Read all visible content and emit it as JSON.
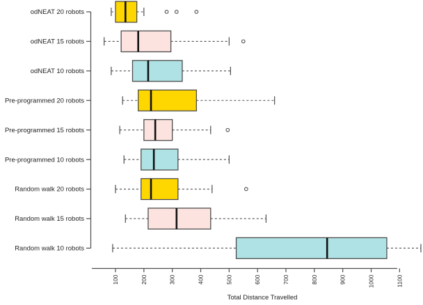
{
  "chart_data": {
    "type": "boxplot",
    "orientation": "horizontal",
    "xlabel": "Total Distance Travelled",
    "x_ticks": [
      100,
      200,
      300,
      400,
      500,
      600,
      700,
      800,
      900,
      1000,
      1100
    ],
    "xlim": [
      60,
      1180
    ],
    "grid": false,
    "legend": "none",
    "colors": {
      "gold": "#FFD700",
      "pink": "#FCE3DF",
      "blue": "#AFE2E4"
    },
    "stroke_color": "#4d4d4d",
    "median_color": "#111111",
    "series": [
      {
        "label": "odNEAT 20 robots",
        "color_key": "gold",
        "low": 85,
        "q1": 100,
        "median": 135,
        "q3": 175,
        "high": 200,
        "outliers": [
          280,
          315,
          385
        ]
      },
      {
        "label": "odNEAT 15 robots",
        "color_key": "pink",
        "low": 60,
        "q1": 120,
        "median": 180,
        "q3": 295,
        "high": 500,
        "outliers": [
          550
        ]
      },
      {
        "label": "odNEAT 10 robots",
        "color_key": "blue",
        "low": 85,
        "q1": 160,
        "median": 215,
        "q3": 335,
        "high": 505,
        "outliers": []
      },
      {
        "label": "Pre-programmed 20 robots",
        "color_key": "gold",
        "low": 125,
        "q1": 180,
        "median": 225,
        "q3": 385,
        "high": 660,
        "outliers": []
      },
      {
        "label": "Pre-programmed 15 robots",
        "color_key": "pink",
        "low": 115,
        "q1": 200,
        "median": 240,
        "q3": 300,
        "high": 435,
        "outliers": [
          495
        ]
      },
      {
        "label": "Pre-programmed 10 robots",
        "color_key": "blue",
        "low": 130,
        "q1": 190,
        "median": 235,
        "q3": 320,
        "high": 500,
        "outliers": []
      },
      {
        "label": "Random walk 20 robots",
        "color_key": "gold",
        "low": 100,
        "q1": 190,
        "median": 225,
        "q3": 320,
        "high": 440,
        "outliers": [
          560
        ]
      },
      {
        "label": "Random walk 15 robots",
        "color_key": "pink",
        "low": 135,
        "q1": 215,
        "median": 315,
        "q3": 435,
        "high": 630,
        "outliers": []
      },
      {
        "label": "Random walk 10 robots",
        "color_key": "blue",
        "low": 90,
        "q1": 525,
        "median": 845,
        "q3": 1055,
        "high": 1175,
        "outliers": []
      }
    ]
  }
}
